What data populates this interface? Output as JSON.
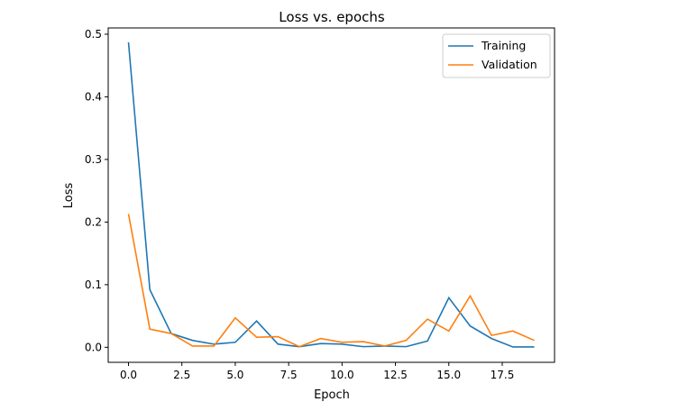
{
  "chart_data": {
    "type": "line",
    "title": "Loss vs. epochs",
    "xlabel": "Epoch",
    "ylabel": "Loss",
    "xlim": [
      -0.95,
      19.95
    ],
    "ylim": [
      -0.024,
      0.51
    ],
    "xticks": [
      0,
      2.5,
      5,
      7.5,
      10,
      12.5,
      15,
      17.5
    ],
    "xtick_labels": [
      "0.0",
      "2.5",
      "5.0",
      "7.5",
      "10.0",
      "12.5",
      "15.0",
      "17.5"
    ],
    "yticks": [
      0,
      0.1,
      0.2,
      0.3,
      0.4,
      0.5
    ],
    "ytick_labels": [
      "0.0",
      "0.1",
      "0.2",
      "0.3",
      "0.4",
      "0.5"
    ],
    "grid": false,
    "legend_position": "top-right",
    "x": [
      0,
      1,
      2,
      3,
      4,
      5,
      6,
      7,
      8,
      9,
      10,
      11,
      12,
      13,
      14,
      15,
      16,
      17,
      18,
      19
    ],
    "series": [
      {
        "name": "Training",
        "color": "#1f77b4",
        "values": [
          0.487,
          0.092,
          0.022,
          0.011,
          0.005,
          0.008,
          0.042,
          0.005,
          0.001,
          0.006,
          0.005,
          0.001,
          0.002,
          0.001,
          0.01,
          0.079,
          0.034,
          0.014,
          0.0005,
          0.0005
        ]
      },
      {
        "name": "Validation",
        "color": "#ff7f0e",
        "values": [
          0.213,
          0.029,
          0.022,
          0.002,
          0.002,
          0.047,
          0.016,
          0.017,
          0.001,
          0.014,
          0.008,
          0.009,
          0.002,
          0.011,
          0.045,
          0.026,
          0.082,
          0.019,
          0.026,
          0.011
        ]
      }
    ]
  }
}
